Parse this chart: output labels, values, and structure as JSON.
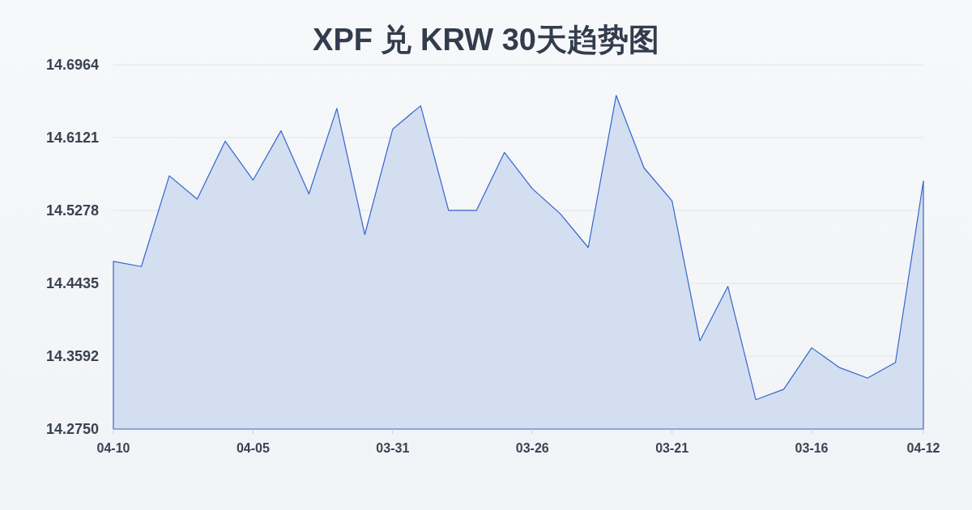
{
  "chart_data": {
    "type": "area",
    "title": "XPF 兑 KRW 30天趋势图",
    "categories": [
      "04-10",
      null,
      null,
      null,
      null,
      "04-05",
      null,
      null,
      null,
      null,
      "03-31",
      null,
      null,
      null,
      null,
      "03-26",
      null,
      null,
      null,
      null,
      "03-21",
      null,
      null,
      null,
      null,
      "03-16",
      null,
      null,
      null,
      "04-12"
    ],
    "values": [
      14.469,
      14.463,
      14.568,
      14.541,
      14.608,
      14.563,
      14.62,
      14.547,
      14.646,
      14.5,
      14.622,
      14.649,
      14.528,
      14.528,
      14.595,
      14.553,
      14.524,
      14.485,
      14.661,
      14.577,
      14.539,
      14.377,
      14.44,
      14.309,
      14.321,
      14.369,
      14.346,
      14.334,
      14.352,
      14.562
    ],
    "color": "#3366cc",
    "ylim": [
      14.275,
      14.6964
    ],
    "yticks": [
      {
        "value": 14.275,
        "label": "14.2750"
      },
      14.3592,
      14.4435,
      14.5278,
      14.6121,
      14.6964
    ],
    "grid": "y"
  }
}
